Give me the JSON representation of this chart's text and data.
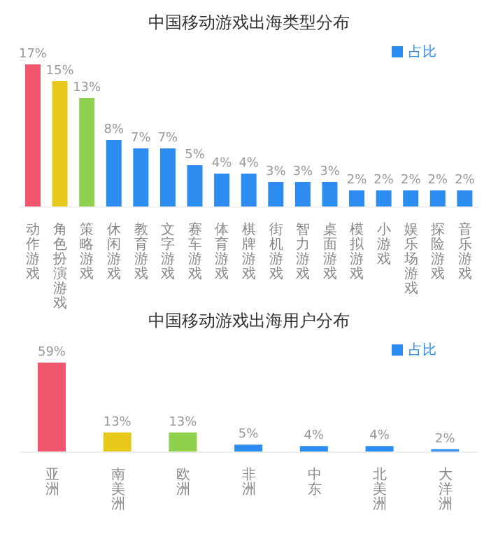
{
  "chart_data": [
    {
      "type": "bar",
      "title": "中国移动游戏出海类型分布",
      "categories": [
        "动作游戏",
        "角色扮演游戏",
        "策略游戏",
        "休闲游戏",
        "教育游戏",
        "文字游戏",
        "赛车游戏",
        "体育游戏",
        "棋牌游戏",
        "街机游戏",
        "智力游戏",
        "桌面游戏",
        "模拟游戏",
        "小游戏",
        "娱乐场游戏",
        "探险游戏",
        "音乐游戏"
      ],
      "series": [
        {
          "name": "占比",
          "color": "#2d8cf0",
          "values": [
            17,
            15,
            13,
            8,
            7,
            7,
            5,
            4,
            4,
            3,
            3,
            3,
            2,
            2,
            2,
            2,
            2
          ],
          "colors": [
            "#f0566e",
            "#e6c91a",
            "#8fd14f",
            "#2d8cf0",
            "#2d8cf0",
            "#2d8cf0",
            "#2d8cf0",
            "#2d8cf0",
            "#2d8cf0",
            "#2d8cf0",
            "#2d8cf0",
            "#2d8cf0",
            "#2d8cf0",
            "#2d8cf0",
            "#2d8cf0",
            "#2d8cf0",
            "#2d8cf0"
          ],
          "value_labels": [
            "17%",
            "15%",
            "13%",
            "8%",
            "7%",
            "7%",
            "5%",
            "4%",
            "4%",
            "3%",
            "3%",
            "3%",
            "2%",
            "2%",
            "2%",
            "2%",
            "2%"
          ]
        }
      ],
      "legend": "top right"
    },
    {
      "type": "bar",
      "title": "中国移动游戏出海用户分布",
      "categories": [
        "亚洲",
        "南美洲",
        "欧洲",
        "非洲",
        "中东",
        "北美洲",
        "大洋洲"
      ],
      "series": [
        {
          "name": "占比",
          "color": "#2d8cf0",
          "values": [
            59,
            13,
            13,
            5,
            4,
            4,
            2
          ],
          "colors": [
            "#f0566e",
            "#e6c91a",
            "#8fd14f",
            "#2d8cf0",
            "#2d8cf0",
            "#2d8cf0",
            "#2d8cf0"
          ],
          "value_labels": [
            "59%",
            "13%",
            "13%",
            "5%",
            "4%",
            "4%",
            "2%"
          ]
        }
      ],
      "legend": "top right"
    }
  ]
}
